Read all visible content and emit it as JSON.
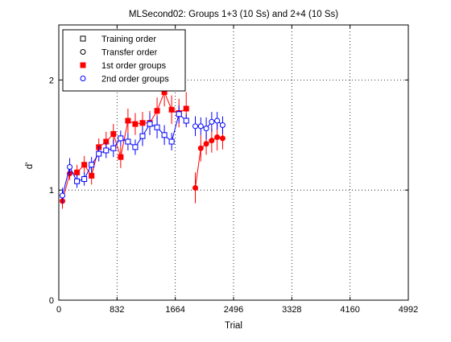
{
  "chart_data": {
    "type": "scatter",
    "title": "MLSecond02: Groups 1+3 (10 Ss) and 2+4 (10 Ss)",
    "xlabel": "Trial",
    "ylabel": "d'",
    "xlim": [
      0,
      4992
    ],
    "ylim": [
      0,
      2.5
    ],
    "xticks": [
      0,
      832,
      1664,
      2496,
      3328,
      4160,
      4992
    ],
    "xtick_labels": [
      "0",
      "832",
      "1664",
      "2496",
      "3328",
      "4160",
      "4992"
    ],
    "yticks": [
      0,
      1,
      2
    ],
    "ytick_labels": [
      "0",
      "1",
      "2"
    ],
    "grid": true,
    "legend_position": "top-left",
    "colors": {
      "red": "#ff0000",
      "blue": "#0000ff",
      "black": "#000000"
    },
    "legend": [
      {
        "label": "Training order",
        "marker": "square-open",
        "color": "#000000"
      },
      {
        "label": "Transfer order",
        "marker": "circle-open",
        "color": "#000000"
      },
      {
        "label": "1st order groups",
        "marker": "square-filled",
        "color": "#ff0000"
      },
      {
        "label": "2nd order groups",
        "marker": "circle-open",
        "color": "#0000ff"
      }
    ],
    "series": [
      {
        "name": "1st order groups",
        "color": "#ff0000",
        "segments": [
          {
            "points": [
              {
                "x": 52,
                "y": 0.9,
                "err": 0.07,
                "marker": "circle"
              },
              {
                "x": 156,
                "y": 1.15,
                "err": 0.06,
                "marker": "circle"
              },
              {
                "x": 260,
                "y": 1.16,
                "err": 0.07,
                "marker": "square"
              },
              {
                "x": 364,
                "y": 1.23,
                "err": 0.08,
                "marker": "square"
              },
              {
                "x": 468,
                "y": 1.13,
                "err": 0.08,
                "marker": "square"
              },
              {
                "x": 572,
                "y": 1.39,
                "err": 0.08,
                "marker": "square"
              },
              {
                "x": 676,
                "y": 1.44,
                "err": 0.09,
                "marker": "square"
              },
              {
                "x": 780,
                "y": 1.51,
                "err": 0.09,
                "marker": "square"
              },
              {
                "x": 884,
                "y": 1.3,
                "err": 0.1,
                "marker": "square"
              },
              {
                "x": 988,
                "y": 1.63,
                "err": 0.11,
                "marker": "square"
              },
              {
                "x": 1092,
                "y": 1.6,
                "err": 0.1,
                "marker": "square"
              },
              {
                "x": 1196,
                "y": 1.61,
                "err": 0.1,
                "marker": "square"
              },
              {
                "x": 1300,
                "y": 1.61,
                "err": 0.11,
                "marker": "square"
              },
              {
                "x": 1404,
                "y": 1.72,
                "err": 0.12,
                "marker": "square"
              },
              {
                "x": 1508,
                "y": 1.89,
                "err": 0.13,
                "marker": "square"
              },
              {
                "x": 1612,
                "y": 1.73,
                "err": 0.13,
                "marker": "square"
              },
              {
                "x": 1716,
                "y": 1.7,
                "err": 0.13,
                "marker": "square"
              },
              {
                "x": 1820,
                "y": 1.74,
                "err": 0.15,
                "marker": "square"
              }
            ]
          },
          {
            "points": [
              {
                "x": 1950,
                "y": 1.02,
                "err": 0.14,
                "marker": "circle"
              },
              {
                "x": 2028,
                "y": 1.38,
                "err": 0.12,
                "marker": "circle"
              },
              {
                "x": 2106,
                "y": 1.42,
                "err": 0.1,
                "marker": "circle"
              },
              {
                "x": 2184,
                "y": 1.45,
                "err": 0.11,
                "marker": "circle"
              },
              {
                "x": 2262,
                "y": 1.48,
                "err": 0.12,
                "marker": "circle"
              },
              {
                "x": 2340,
                "y": 1.47,
                "err": 0.1,
                "marker": "circle"
              }
            ]
          }
        ]
      },
      {
        "name": "2nd order groups",
        "color": "#0000ff",
        "segments": [
          {
            "points": [
              {
                "x": 52,
                "y": 0.95,
                "err": 0.07,
                "marker": "circle"
              },
              {
                "x": 156,
                "y": 1.21,
                "err": 0.08,
                "marker": "circle"
              },
              {
                "x": 260,
                "y": 1.08,
                "err": 0.06,
                "marker": "square"
              },
              {
                "x": 364,
                "y": 1.1,
                "err": 0.06,
                "marker": "square"
              },
              {
                "x": 468,
                "y": 1.23,
                "err": 0.07,
                "marker": "square"
              },
              {
                "x": 572,
                "y": 1.33,
                "err": 0.07,
                "marker": "square"
              },
              {
                "x": 676,
                "y": 1.36,
                "err": 0.07,
                "marker": "square"
              },
              {
                "x": 780,
                "y": 1.38,
                "err": 0.08,
                "marker": "square"
              },
              {
                "x": 884,
                "y": 1.47,
                "err": 0.07,
                "marker": "square"
              },
              {
                "x": 988,
                "y": 1.44,
                "err": 0.08,
                "marker": "square"
              },
              {
                "x": 1092,
                "y": 1.39,
                "err": 0.07,
                "marker": "square"
              },
              {
                "x": 1196,
                "y": 1.49,
                "err": 0.09,
                "marker": "square"
              },
              {
                "x": 1300,
                "y": 1.6,
                "err": 0.1,
                "marker": "square"
              },
              {
                "x": 1404,
                "y": 1.57,
                "err": 0.1,
                "marker": "square"
              },
              {
                "x": 1508,
                "y": 1.5,
                "err": 0.09,
                "marker": "square"
              },
              {
                "x": 1612,
                "y": 1.44,
                "err": 0.08,
                "marker": "square"
              },
              {
                "x": 1716,
                "y": 1.69,
                "err": 0.08,
                "marker": "square"
              },
              {
                "x": 1820,
                "y": 1.63,
                "err": 0.06,
                "marker": "square"
              }
            ]
          },
          {
            "points": [
              {
                "x": 1950,
                "y": 1.58,
                "err": 0.09,
                "marker": "circle"
              },
              {
                "x": 2028,
                "y": 1.58,
                "err": 0.08,
                "marker": "circle"
              },
              {
                "x": 2106,
                "y": 1.56,
                "err": 0.1,
                "marker": "circle"
              },
              {
                "x": 2184,
                "y": 1.62,
                "err": 0.09,
                "marker": "circle"
              },
              {
                "x": 2262,
                "y": 1.63,
                "err": 0.08,
                "marker": "circle"
              },
              {
                "x": 2340,
                "y": 1.59,
                "err": 0.08,
                "marker": "circle"
              }
            ]
          }
        ]
      }
    ]
  }
}
